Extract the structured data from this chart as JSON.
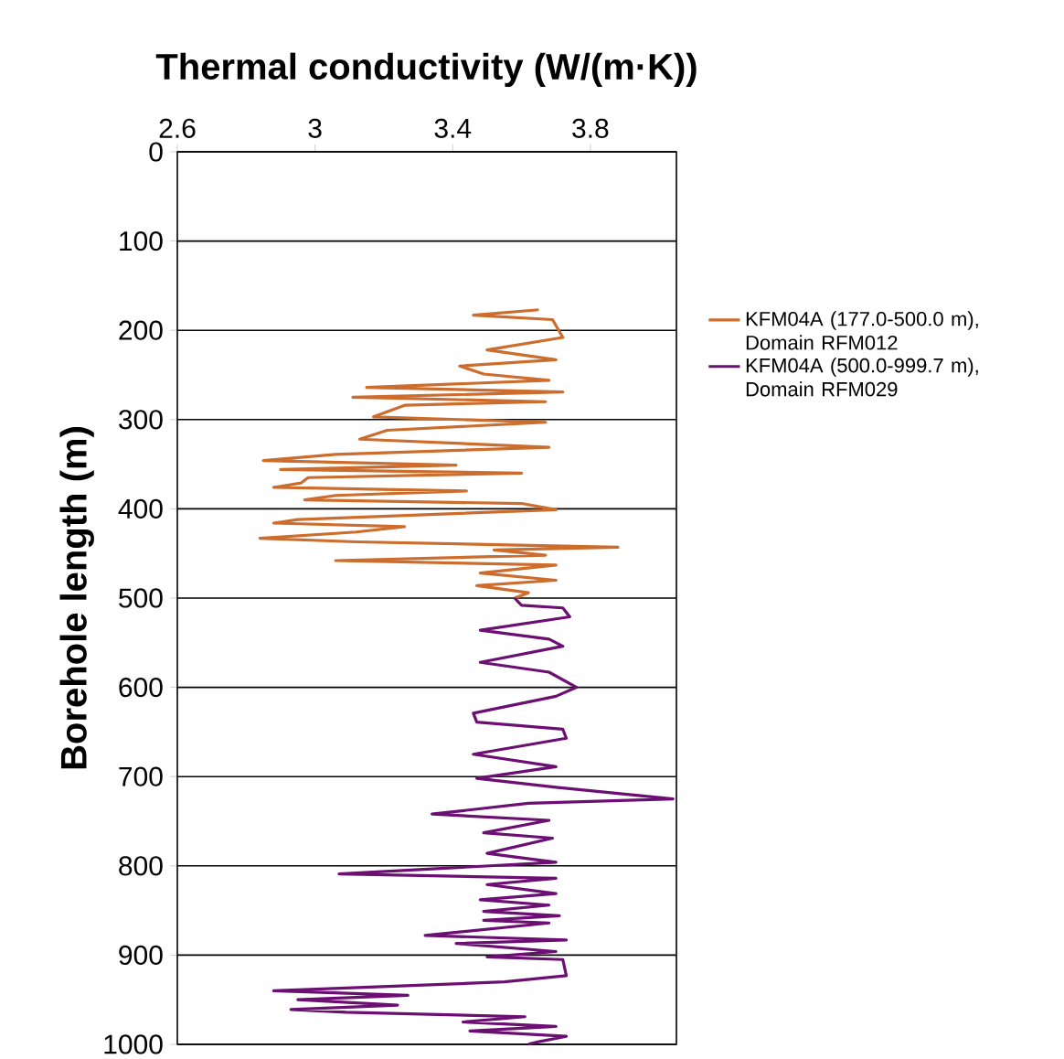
{
  "chart_data": {
    "type": "line",
    "xlabel": "Thermal conductivity (W/(m·K))",
    "ylabel": "Borehole length (m)",
    "xlim": [
      2.6,
      4.05
    ],
    "ylim": [
      1000,
      0
    ],
    "xticks": [
      2.6,
      3,
      3.4,
      3.8
    ],
    "yticks": [
      0,
      100,
      200,
      300,
      400,
      500,
      600,
      700,
      800,
      900,
      1000
    ],
    "grid": "y",
    "legend": "right",
    "series": [
      {
        "name": "KFM04A (177.0-500.0 m), Domain RFM012",
        "color": "#cc6d2e",
        "x": [
          3.65,
          3.46,
          3.69,
          3.72,
          3.5,
          3.7,
          3.42,
          3.49,
          3.68,
          3.15,
          3.72,
          3.11,
          3.67,
          3.26,
          3.17,
          3.67,
          3.21,
          3.13,
          3.68,
          3.06,
          2.85,
          3.41,
          2.9,
          3.6,
          2.98,
          2.96,
          2.88,
          3.44,
          3.06,
          2.97,
          3.6,
          3.7,
          2.95,
          2.88,
          3.26,
          3.12,
          2.84,
          3.12,
          3.88,
          3.52,
          3.67,
          3.06,
          3.7,
          3.48,
          3.7,
          3.47,
          3.62,
          3.58
        ],
        "values": [
          177,
          183,
          188,
          208,
          222,
          233,
          240,
          249,
          256,
          264,
          269,
          275,
          280,
          284,
          297,
          303,
          312,
          322,
          331,
          339,
          346,
          351,
          356,
          360,
          365,
          371,
          376,
          380,
          385,
          390,
          394,
          401,
          412,
          416,
          420,
          426,
          433,
          437,
          443,
          446,
          452,
          458,
          463,
          472,
          480,
          486,
          494,
          500
        ]
      },
      {
        "name": "KFM04A (500.0-999.7 m), Domain RFM029",
        "color": "#6b0f73",
        "x": [
          3.58,
          3.6,
          3.72,
          3.74,
          3.48,
          3.68,
          3.72,
          3.48,
          3.68,
          3.76,
          3.7,
          3.46,
          3.47,
          3.72,
          3.73,
          3.46,
          3.7,
          3.47,
          3.7,
          4.04,
          3.62,
          3.34,
          3.68,
          3.49,
          3.69,
          3.5,
          3.7,
          3.07,
          3.7,
          3.5,
          3.7,
          3.48,
          3.68,
          3.49,
          3.71,
          3.49,
          3.68,
          3.32,
          3.73,
          3.41,
          3.7,
          3.5,
          3.72,
          3.73,
          3.55,
          2.88,
          3.27,
          2.95,
          3.24,
          2.93,
          3.09,
          3.61,
          3.43,
          3.7,
          3.45,
          3.73,
          3.65,
          3.62
        ],
        "values": [
          500,
          508,
          511,
          521,
          536,
          546,
          554,
          572,
          583,
          600,
          610,
          629,
          639,
          647,
          657,
          675,
          689,
          702,
          712,
          725,
          730,
          742,
          749,
          763,
          769,
          786,
          796,
          809,
          814,
          821,
          831,
          838,
          844,
          851,
          856,
          861,
          864,
          878,
          883,
          887,
          896,
          902,
          905,
          923,
          930,
          940,
          945,
          950,
          956,
          961,
          964,
          969,
          975,
          980,
          985,
          991,
          997,
          999.7
        ]
      }
    ]
  }
}
